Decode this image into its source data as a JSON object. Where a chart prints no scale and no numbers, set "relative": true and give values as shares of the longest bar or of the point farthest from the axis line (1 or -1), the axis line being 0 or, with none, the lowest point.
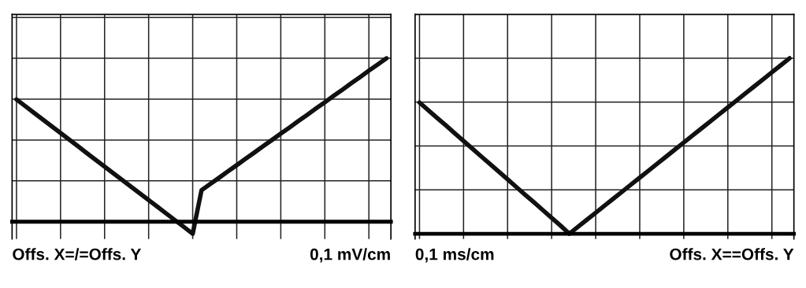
{
  "chart_data": [
    {
      "type": "line",
      "relative": true,
      "grid": true,
      "tick_labels": false,
      "categories": [
        null,
        null,
        null,
        null,
        null,
        null,
        null,
        null,
        null,
        null,
        null,
        null,
        null,
        null,
        null,
        null,
        null,
        null,
        null,
        null,
        null,
        null,
        null,
        null,
        null,
        null,
        null,
        null,
        null,
        null,
        null,
        null,
        null,
        null,
        null,
        null,
        null,
        null,
        null,
        null,
        null,
        null,
        null
      ],
      "series": [
        {
          "color": "#111111",
          "values": [
            0.748,
            0.707,
            0.666,
            0.625,
            0.584,
            0.543,
            0.502,
            0.461,
            0.419,
            0.378,
            0.337,
            0.296,
            0.255,
            0.214,
            0.173,
            0.132,
            0.091,
            0.05,
            0.009,
            -0.032,
            -0.074,
            0.192,
            0.231,
            0.269,
            0.308,
            0.346,
            0.385,
            0.423,
            0.462,
            0.5,
            0.539,
            0.577,
            0.616,
            0.654,
            0.693,
            0.731,
            0.77,
            0.808,
            0.847,
            0.885,
            0.924,
            0.962,
            1.0
          ]
        }
      ],
      "annotations": [
        "Offs. X=/=Offs. Y",
        "0,1 mV/cm"
      ]
    },
    {
      "type": "line",
      "relative": true,
      "grid": true,
      "tick_labels": false,
      "categories": [
        null,
        null,
        null,
        null,
        null,
        null,
        null,
        null,
        null,
        null,
        null,
        null,
        null,
        null,
        null,
        null,
        null,
        null,
        null,
        null,
        null,
        null,
        null,
        null,
        null,
        null,
        null,
        null,
        null,
        null,
        null,
        null,
        null,
        null,
        null,
        null,
        null,
        null,
        null,
        null,
        null,
        null,
        null
      ],
      "series": [
        {
          "color": "#111111",
          "values": [
            0.748,
            0.704,
            0.66,
            0.617,
            0.573,
            0.529,
            0.485,
            0.441,
            0.398,
            0.354,
            0.31,
            0.266,
            0.222,
            0.179,
            0.135,
            0.091,
            0.047,
            0,
            0.04,
            0.08,
            0.12,
            0.16,
            0.2,
            0.24,
            0.28,
            0.32,
            0.36,
            0.4,
            0.44,
            0.48,
            0.52,
            0.56,
            0.6,
            0.64,
            0.68,
            0.72,
            0.76,
            0.8,
            0.84,
            0.88,
            0.92,
            0.96,
            1.0
          ]
        }
      ],
      "annotations": [
        "0,1 ms/cm",
        "Offs. X==Offs. Y"
      ]
    }
  ]
}
